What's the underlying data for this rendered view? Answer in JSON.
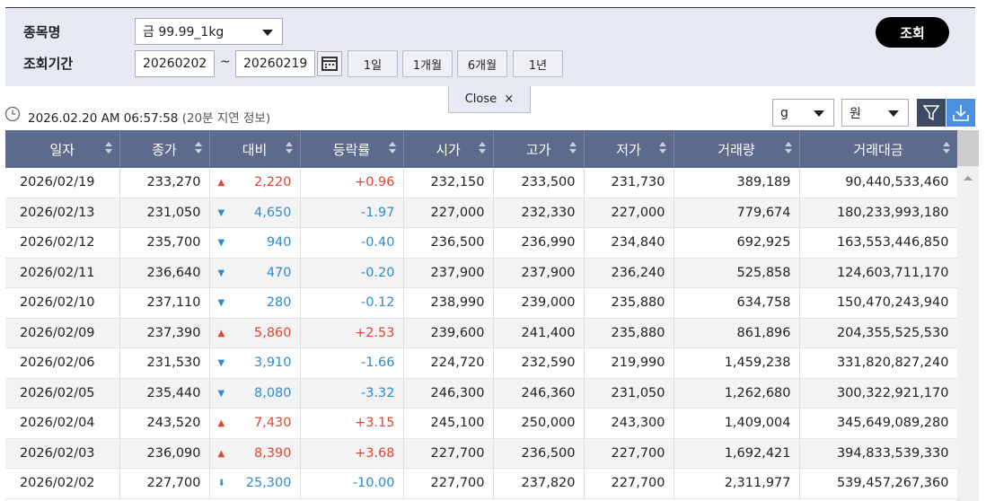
{
  "filters": {
    "item_label": "종목명",
    "item_select": "금 99.99_1kg",
    "period_label": "조회기간",
    "date_from": "20260202",
    "tilde": "~",
    "date_to": "20260219",
    "buttons": [
      "1일",
      "1개월",
      "6개월",
      "1년"
    ],
    "search": "조회",
    "close": "Close",
    "close_x": "×"
  },
  "info": {
    "timestamp": "2026.02.20 AM 06:57:58",
    "note": "(20분 지연 정보)",
    "unit_select": "g",
    "currency_select": "원"
  },
  "table": {
    "headers": [
      "일자",
      "종가",
      "대비",
      "등락률",
      "시가",
      "고가",
      "저가",
      "거래량",
      "거래대금"
    ],
    "rows": [
      {
        "color": "#e0452f",
        "cells": [
          "2026/02/19",
          "233,270",
          "▲",
          "2,220",
          "+0.96",
          "232,150",
          "233,500",
          "231,730",
          "389,189",
          "90,440,533,460"
        ]
      },
      {
        "color": "#2d8ccf",
        "cells": [
          "2026/02/13",
          "231,050",
          "▼",
          "4,650",
          "-1.97",
          "227,000",
          "232,330",
          "227,000",
          "779,674",
          "180,233,993,180"
        ]
      },
      {
        "color": "#2d8ccf",
        "cells": [
          "2026/02/12",
          "235,700",
          "▼",
          "940",
          "-0.40",
          "236,500",
          "236,990",
          "234,840",
          "692,925",
          "163,553,446,850"
        ]
      },
      {
        "color": "#2d8ccf",
        "cells": [
          "2026/02/11",
          "236,640",
          "▼",
          "470",
          "-0.20",
          "237,900",
          "237,900",
          "236,240",
          "525,858",
          "124,603,711,170"
        ]
      },
      {
        "color": "#2d8ccf",
        "cells": [
          "2026/02/10",
          "237,110",
          "▼",
          "280",
          "-0.12",
          "238,990",
          "239,000",
          "235,880",
          "634,758",
          "150,470,243,940"
        ]
      },
      {
        "color": "#e0452f",
        "cells": [
          "2026/02/09",
          "237,390",
          "▲",
          "5,860",
          "+2.53",
          "239,600",
          "241,400",
          "235,880",
          "861,896",
          "204,355,525,530"
        ]
      },
      {
        "color": "#2d8ccf",
        "cells": [
          "2026/02/06",
          "231,530",
          "▼",
          "3,910",
          "-1.66",
          "224,720",
          "232,590",
          "219,990",
          "1,459,238",
          "331,820,827,240"
        ]
      },
      {
        "color": "#2d8ccf",
        "cells": [
          "2026/02/05",
          "235,440",
          "▼",
          "8,080",
          "-3.32",
          "246,300",
          "246,360",
          "231,050",
          "1,262,680",
          "300,322,921,170"
        ]
      },
      {
        "color": "#e0452f",
        "cells": [
          "2026/02/04",
          "243,520",
          "▲",
          "7,430",
          "+3.15",
          "245,100",
          "250,000",
          "243,300",
          "1,409,004",
          "345,649,089,280"
        ]
      },
      {
        "color": "#e0452f",
        "cells": [
          "2026/02/03",
          "236,090",
          "▲",
          "8,390",
          "+3.68",
          "227,700",
          "236,500",
          "227,700",
          "1,692,421",
          "394,833,539,330"
        ]
      },
      {
        "color": "#2d8ccf",
        "cells": [
          "2026/02/02",
          "227,700",
          "⬇",
          "25,300",
          "-10.00",
          "227,700",
          "237,820",
          "227,700",
          "2,311,977",
          "539,457,267,360"
        ]
      }
    ]
  }
}
